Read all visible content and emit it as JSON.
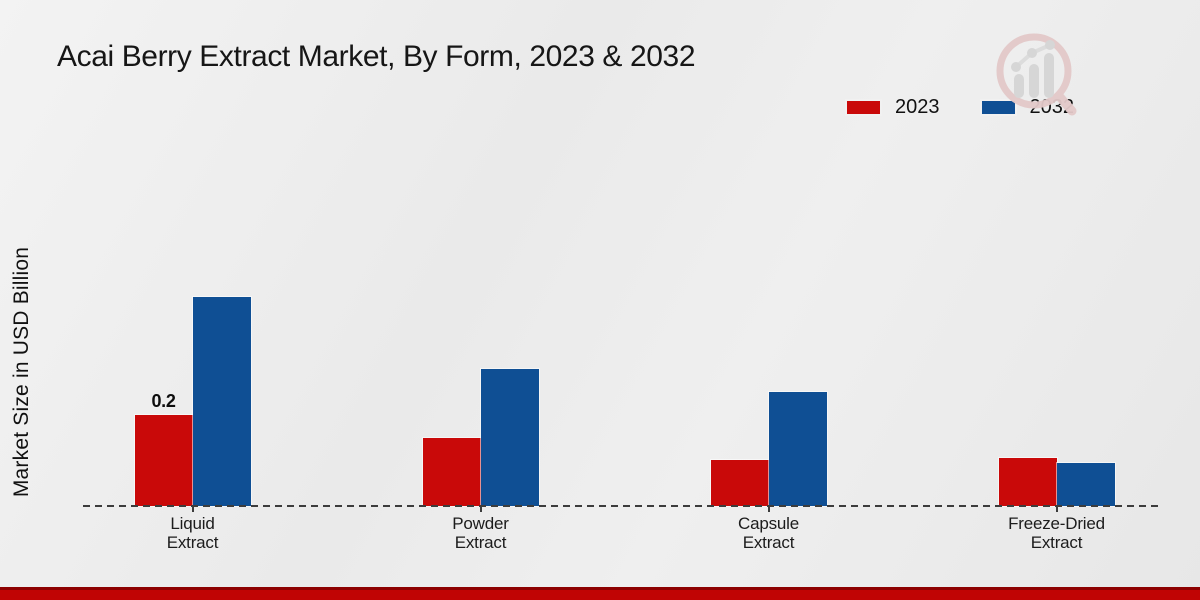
{
  "chart_data": {
    "type": "bar",
    "title": "Acai Berry Extract Market, By Form, 2023 & 2032",
    "xlabel": "",
    "ylabel": "Market Size in USD Billion",
    "categories": [
      "Liquid Extract",
      "Powder Extract",
      "Capsule Extract",
      "Freeze-Dried Extract"
    ],
    "series": [
      {
        "name": "2023",
        "color": "#c90909",
        "values": [
          0.2,
          0.15,
          0.1,
          0.105
        ]
      },
      {
        "name": "2032",
        "color": "#0f4f94",
        "values": [
          0.46,
          0.3,
          0.25,
          0.095
        ]
      }
    ],
    "data_labels": [
      {
        "series_index": 0,
        "category_index": 0,
        "text": "0.2"
      }
    ],
    "ylim": [
      0,
      0.5
    ],
    "grid": false,
    "legend_position": "top-right",
    "baseline_style": "dashed",
    "axis_ticks_shown": false
  },
  "icons": {
    "logo": "magnifier-bar-chart-watermark-logo"
  },
  "colors": {
    "background": "#eaeaea",
    "bar_2023": "#c90909",
    "bar_2032": "#0f4f94",
    "footer_accent": "#c00404",
    "footer_accent_dark": "#8d0000",
    "baseline": "#3c3c3c",
    "logo_ring": "#e3c9c9",
    "logo_gray": "#d5d5d5"
  }
}
